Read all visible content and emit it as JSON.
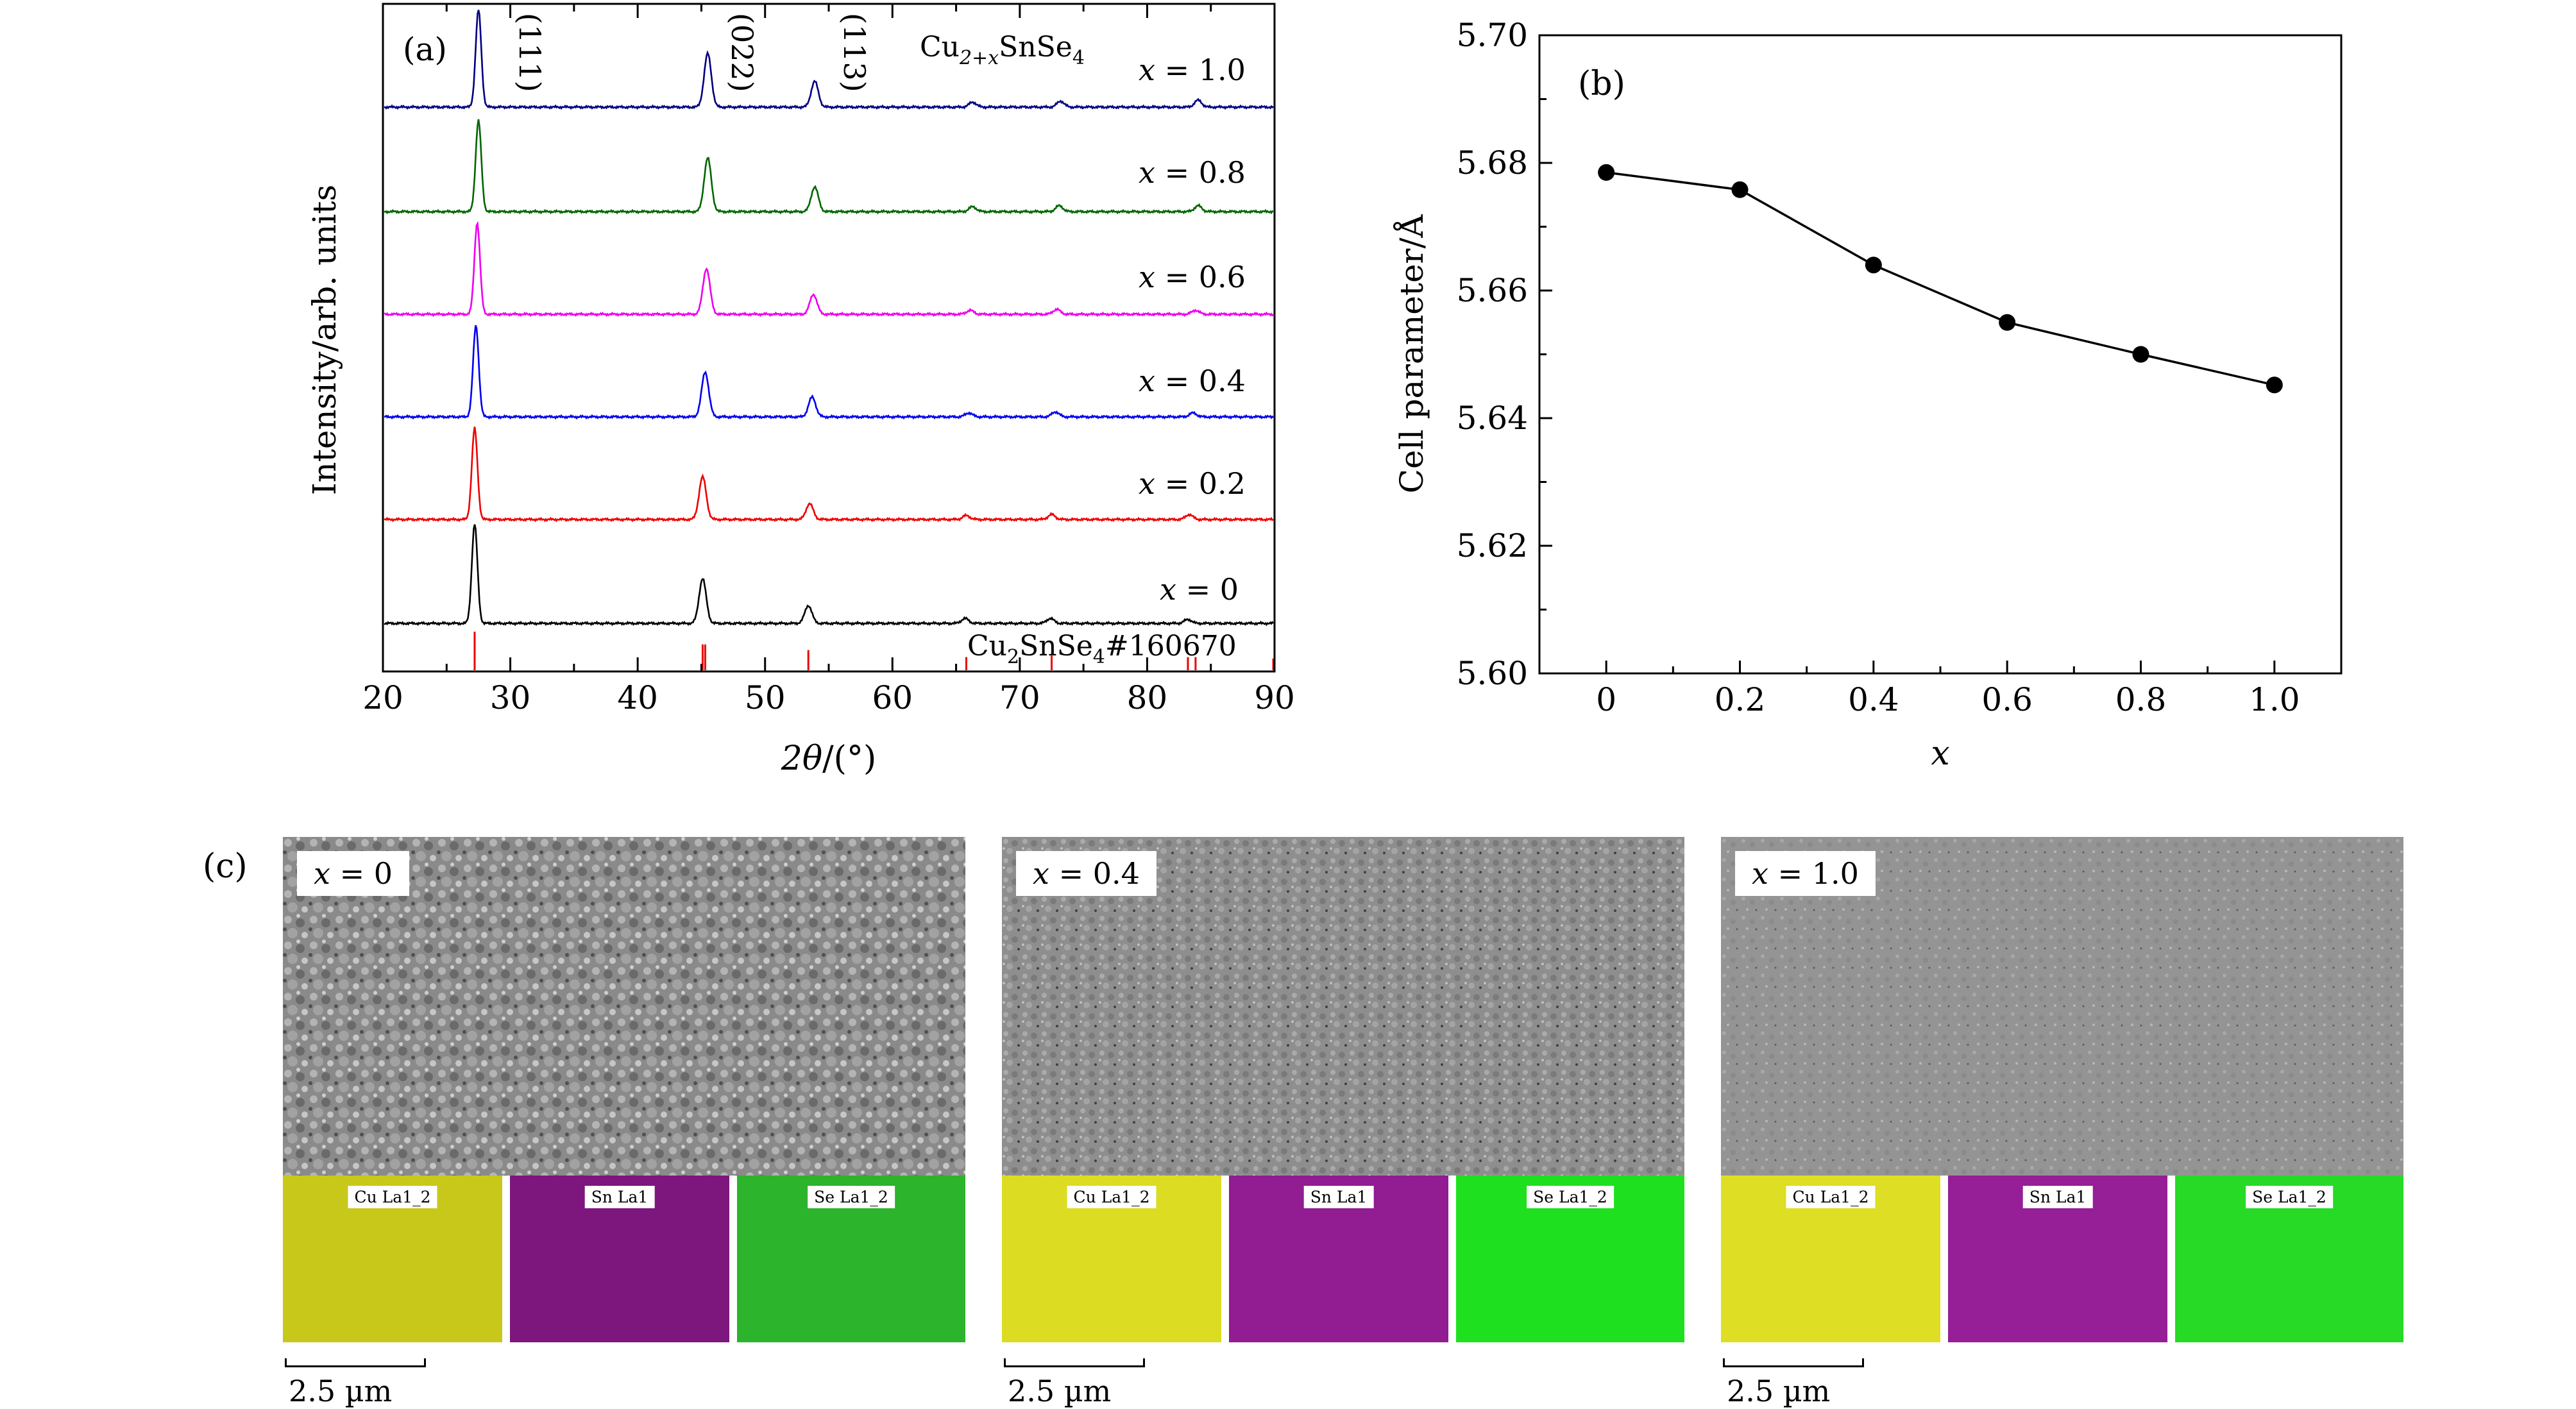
{
  "panel_a": {
    "label": "(a)",
    "ylabel": "Intensity/arb. units",
    "xlabel_theta": "2θ",
    "xlabel_unit": "/(°)",
    "compound_base": "Cu",
    "compound_sub": "2+x",
    "compound_rest": "SnSe",
    "compound_sub4": "4",
    "reference_base": "Cu",
    "reference_sub2": "2",
    "reference_mid": "SnSe",
    "reference_sub4": "4",
    "reference_rest": "#160670",
    "peak_labels": [
      "(111)",
      "(022)",
      "(113)"
    ]
  },
  "panel_b": {
    "label": "(b)",
    "ylabel": "Cell parameter/Å",
    "xlabel": "x"
  },
  "panel_c": {
    "label": "(c)",
    "samples": [
      {
        "x_var": "x",
        "eq": " = ",
        "value": "0",
        "scale": "2.5 µm",
        "maps": [
          {
            "label": "Cu La1_2",
            "color": "#d8d820"
          },
          {
            "label": "Sn La1",
            "color": "#8a1a8a"
          },
          {
            "label": "Se La1_2",
            "color": "#30c030"
          }
        ]
      },
      {
        "x_var": "x",
        "eq": " = ",
        "value": "0.4",
        "scale": "2.5 µm",
        "maps": [
          {
            "label": "Cu La1_2",
            "color": "#e2e22a"
          },
          {
            "label": "Sn La1",
            "color": "#9a1e9a"
          },
          {
            "label": "Se La1_2",
            "color": "#22e022"
          }
        ]
      },
      {
        "x_var": "x",
        "eq": " = ",
        "value": "1.0",
        "scale": "2.5 µm",
        "maps": [
          {
            "label": "Cu La1_2",
            "color": "#e0e024"
          },
          {
            "label": "Sn La1",
            "color": "#9a1e9a"
          },
          {
            "label": "Se La1_2",
            "color": "#28dc28"
          }
        ]
      }
    ]
  },
  "chart_data": [
    {
      "type": "line",
      "title": "",
      "xlabel": "2θ/(°)",
      "ylabel": "Intensity/arb. units",
      "xlim": [
        20,
        90
      ],
      "xticks": [
        20,
        30,
        40,
        50,
        60,
        70,
        80,
        90
      ],
      "series": [
        {
          "name": "x = 0",
          "x_value": 0.0,
          "color": "#000000",
          "peaks_2theta": [
            27.2,
            45.1,
            53.4,
            65.7,
            72.4,
            83.2
          ],
          "peak_heights": [
            1.0,
            0.45,
            0.18,
            0.05,
            0.05,
            0.04
          ]
        },
        {
          "name": "x = 0.2",
          "x_value": 0.2,
          "color": "#ee0000",
          "peaks_2theta": [
            27.2,
            45.1,
            53.5,
            65.8,
            72.5,
            83.3
          ],
          "peak_heights": [
            0.92,
            0.43,
            0.16,
            0.04,
            0.05,
            0.05
          ]
        },
        {
          "name": "x = 0.4",
          "x_value": 0.4,
          "color": "#0000ee",
          "peaks_2theta": [
            27.3,
            45.3,
            53.7,
            66.0,
            72.8,
            83.6
          ],
          "peak_heights": [
            0.92,
            0.45,
            0.2,
            0.04,
            0.05,
            0.04
          ]
        },
        {
          "name": "x = 0.6",
          "x_value": 0.6,
          "color": "#ee00ee",
          "peaks_2theta": [
            27.4,
            45.4,
            53.8,
            66.1,
            72.9,
            83.8
          ],
          "peak_heights": [
            0.92,
            0.46,
            0.2,
            0.04,
            0.05,
            0.04
          ]
        },
        {
          "name": "x = 0.8",
          "x_value": 0.8,
          "color": "#006600",
          "peaks_2theta": [
            27.5,
            45.5,
            53.9,
            66.3,
            73.1,
            84.0
          ],
          "peak_heights": [
            0.92,
            0.54,
            0.25,
            0.05,
            0.06,
            0.06
          ]
        },
        {
          "name": "x = 1.0",
          "x_value": 1.0,
          "color": "#000080",
          "peaks_2theta": [
            27.5,
            45.5,
            53.9,
            66.3,
            73.2,
            84.0
          ],
          "peak_heights": [
            0.98,
            0.54,
            0.26,
            0.05,
            0.06,
            0.07
          ]
        }
      ],
      "offset_labels": [
        "x = 0",
        "x = 0.2",
        "x = 0.4",
        "x = 0.6",
        "x = 0.8",
        "x = 1.0"
      ],
      "reference_pattern": {
        "name": "Cu2SnSe4#160670",
        "color": "#ee0000",
        "peaks_2theta": [
          27.2,
          45.1,
          45.3,
          53.4,
          65.8,
          72.5,
          83.2,
          83.8,
          89.9
        ],
        "rel_intensity": [
          1.0,
          0.55,
          0.55,
          0.35,
          0.1,
          0.15,
          0.1,
          0.1,
          0.05
        ]
      }
    },
    {
      "type": "line",
      "title": "",
      "xlabel": "x",
      "ylabel": "Cell parameter/Å",
      "xlim": [
        -0.1,
        1.1
      ],
      "ylim": [
        5.6,
        5.7
      ],
      "xticks": [
        0,
        0.2,
        0.4,
        0.6,
        0.8,
        1.0
      ],
      "xtick_labels": [
        "0",
        "0.2",
        "0.4",
        "0.6",
        "0.8",
        "1.0"
      ],
      "yticks": [
        5.6,
        5.62,
        5.64,
        5.66,
        5.68,
        5.7
      ],
      "ytick_labels": [
        "5.60",
        "5.62",
        "5.64",
        "5.66",
        "5.68",
        "5.70"
      ],
      "series": [
        {
          "name": "Cell parameter",
          "x": [
            0,
            0.2,
            0.4,
            0.6,
            0.8,
            1.0
          ],
          "y": [
            5.6785,
            5.6758,
            5.664,
            5.655,
            5.65,
            5.6452
          ]
        }
      ]
    }
  ]
}
